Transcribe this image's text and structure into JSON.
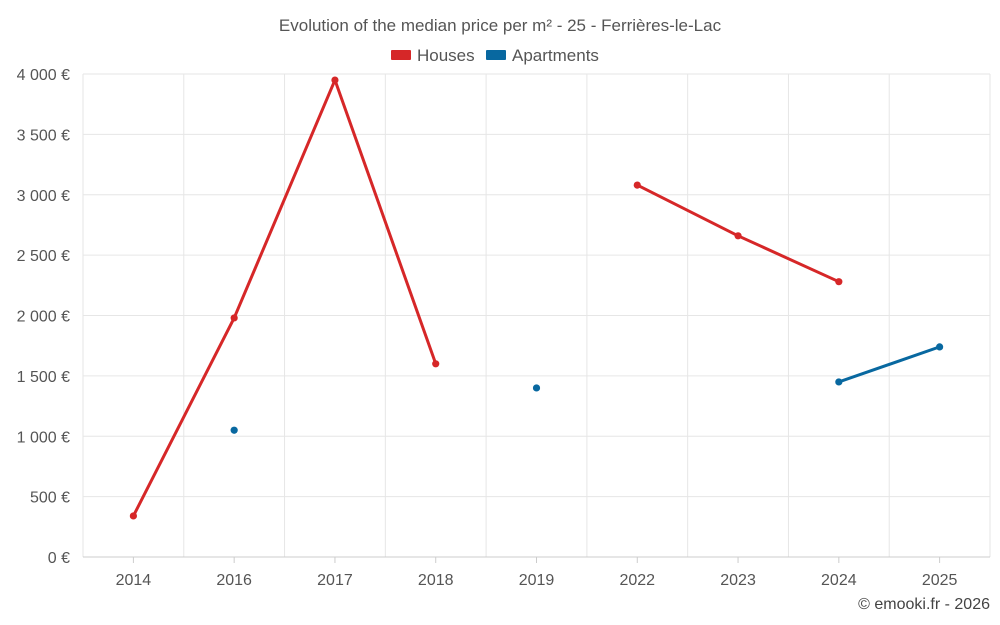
{
  "chart_data": {
    "type": "line",
    "title": "Evolution of the median price per m² - 25 - Ferrières-le-Lac",
    "categories": [
      "2014",
      "2016",
      "2017",
      "2018",
      "2019",
      "2022",
      "2023",
      "2024",
      "2025"
    ],
    "ylim": [
      0,
      4000
    ],
    "y_ticks": [
      0,
      500,
      1000,
      1500,
      2000,
      2500,
      3000,
      3500,
      4000
    ],
    "y_tick_labels": [
      "0 €",
      "500 €",
      "1 000 €",
      "1 500 €",
      "2 000 €",
      "2 500 €",
      "3 000 €",
      "3 500 €",
      "4 000 €"
    ],
    "grid": true,
    "legend_position": "top-center",
    "series": [
      {
        "name": "Houses",
        "color": "#d62728",
        "values": [
          340,
          1980,
          3950,
          1600,
          null,
          3080,
          2660,
          2280,
          null
        ]
      },
      {
        "name": "Apartments",
        "color": "#0868a0",
        "values": [
          null,
          1050,
          null,
          null,
          1400,
          null,
          null,
          1450,
          1740
        ]
      }
    ],
    "credit": "© emooki.fr - 2026"
  }
}
